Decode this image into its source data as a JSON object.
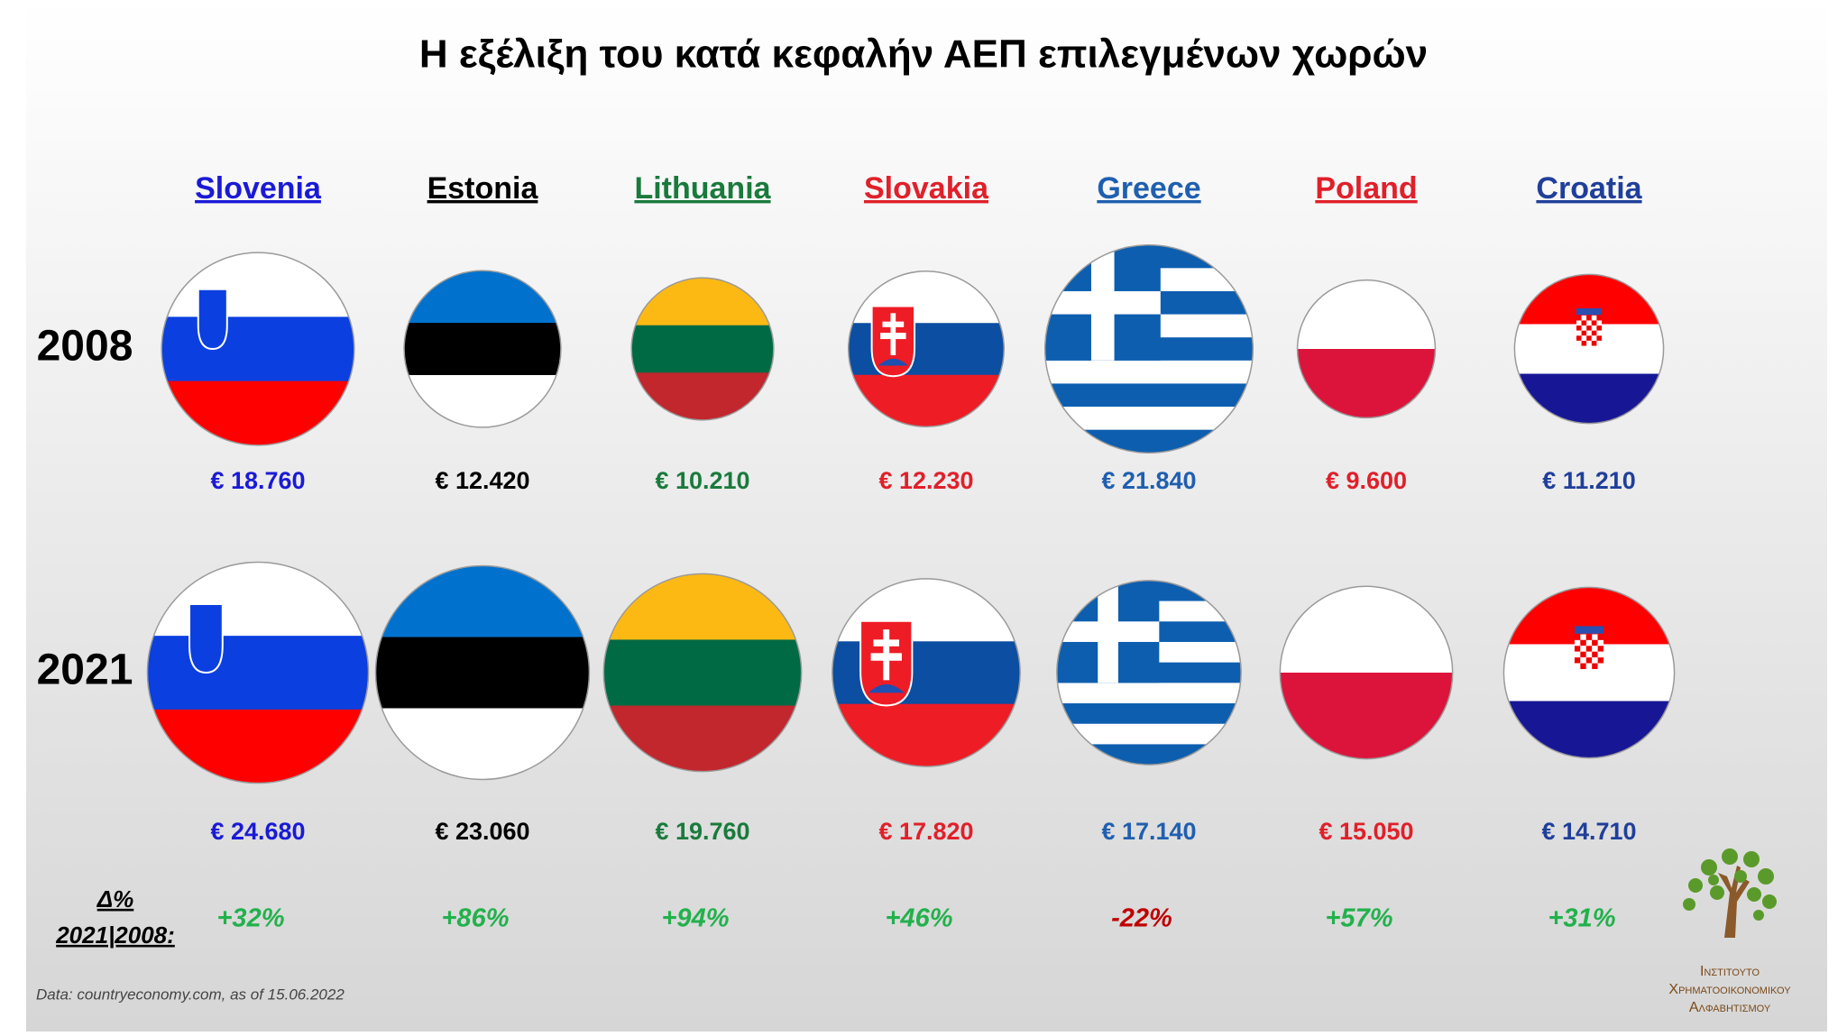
{
  "chart_data": {
    "type": "flag-bubble",
    "title": "Η εξέλιξη του κατά κεφαλήν ΑΕΠ επιλεγμένων χωρών",
    "categories": [
      "Slovenia",
      "Estonia",
      "Lithuania",
      "Slovakia",
      "Greece",
      "Poland",
      "Croatia"
    ],
    "colors": [
      "#1a1ad6",
      "#000000",
      "#1a7a3c",
      "#e0202a",
      "#1f5fb0",
      "#e0202a",
      "#1f3f9a"
    ],
    "series": [
      {
        "name": "2008",
        "values": [
          18760,
          12420,
          10210,
          12230,
          21840,
          9600,
          11210
        ],
        "value_labels": [
          "€ 18.760",
          "€ 12.420",
          "€ 10.210",
          "€ 12.230",
          "€ 21.840",
          "€ 9.600",
          "€ 11.210"
        ]
      },
      {
        "name": "2021",
        "values": [
          24680,
          23060,
          19760,
          17820,
          17140,
          15050,
          14710
        ],
        "value_labels": [
          "€ 24.680",
          "€ 23.060",
          "€ 19.760",
          "€ 17.820",
          "€ 17.140",
          "€ 15.050",
          "€ 14.710"
        ]
      }
    ],
    "change": {
      "label": [
        "Δ%",
        "2021|2008:"
      ],
      "values": [
        32,
        86,
        94,
        46,
        -22,
        57,
        31
      ],
      "value_labels": [
        "+32%",
        "+86%",
        "+94%",
        "+46%",
        "-22%",
        "+57%",
        "+31%"
      ],
      "colors": [
        "#22b14c",
        "#22b14c",
        "#22b14c",
        "#22b14c",
        "#c00000",
        "#22b14c",
        "#22b14c"
      ]
    },
    "source": "Data: countryeconomy.com, as of 15.06.2022",
    "logo": [
      "Ινστιτουτο",
      "Χρηματοοικονομικου",
      "Αλφαβητισμου"
    ]
  }
}
